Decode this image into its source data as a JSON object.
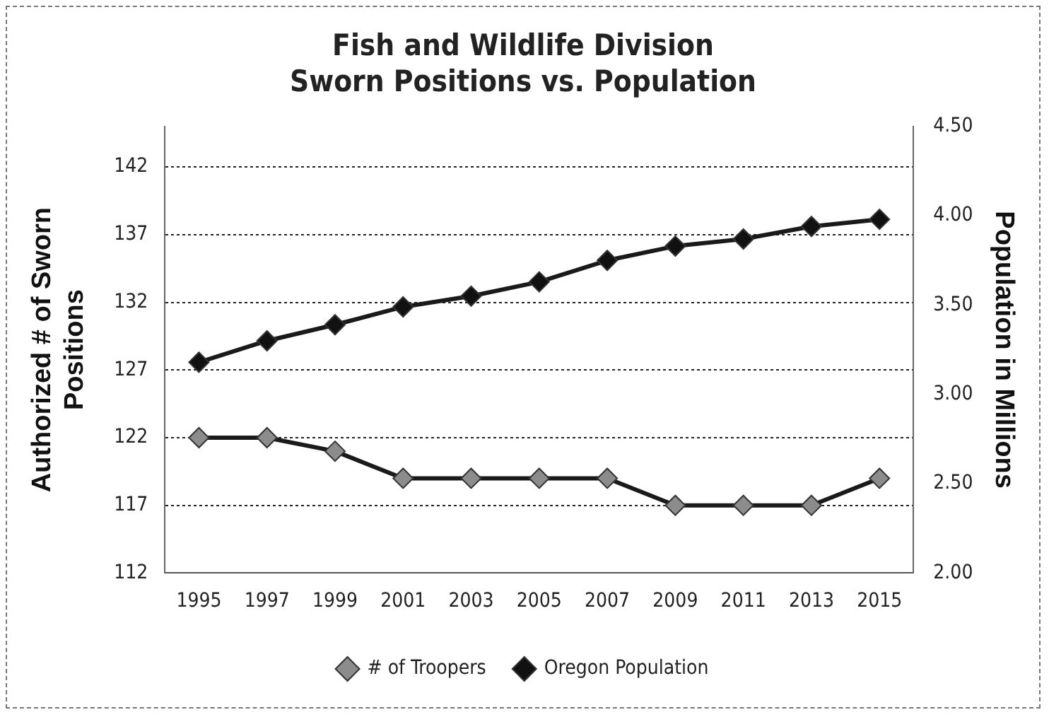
{
  "chart_data": {
    "type": "line",
    "title": "Fish and Wildlife Division\nSworn Positions vs. Population",
    "ylabel": "Authorized # of Sworn Positions",
    "y2label": "Population in Millions",
    "categories": [
      "1995",
      "1997",
      "1999",
      "2001",
      "2003",
      "2005",
      "2007",
      "2009",
      "2011",
      "2013",
      "2015"
    ],
    "series": [
      {
        "name": "# of Troopers",
        "color": "#8c8c8c",
        "values": [
          122,
          122,
          121,
          119,
          119,
          119,
          119,
          117,
          117,
          117,
          119
        ]
      },
      {
        "name": "Oregon Population",
        "color": "#111111",
        "axis": "y2",
        "values": [
          3.18,
          3.3,
          3.39,
          3.49,
          3.55,
          3.63,
          3.75,
          3.83,
          3.87,
          3.94,
          3.98
        ]
      }
    ],
    "ylim": [
      112,
      145
    ],
    "yticks": [
      112,
      117,
      122,
      127,
      132,
      137,
      142
    ],
    "y2lim": [
      2,
      4.5
    ],
    "y2ticks": [
      {
        "value": 2,
        "label": "2.00"
      },
      {
        "value": 2.5,
        "label": "2.50"
      },
      {
        "value": 3,
        "label": "3.00"
      },
      {
        "value": 3.5,
        "label": "3.50"
      },
      {
        "value": 4,
        "label": "4.00"
      },
      {
        "value": 4.5,
        "label": "4.50"
      }
    ],
    "grid": "y",
    "legend": "bottom",
    "marker": "diamond",
    "line_style": "solid"
  }
}
